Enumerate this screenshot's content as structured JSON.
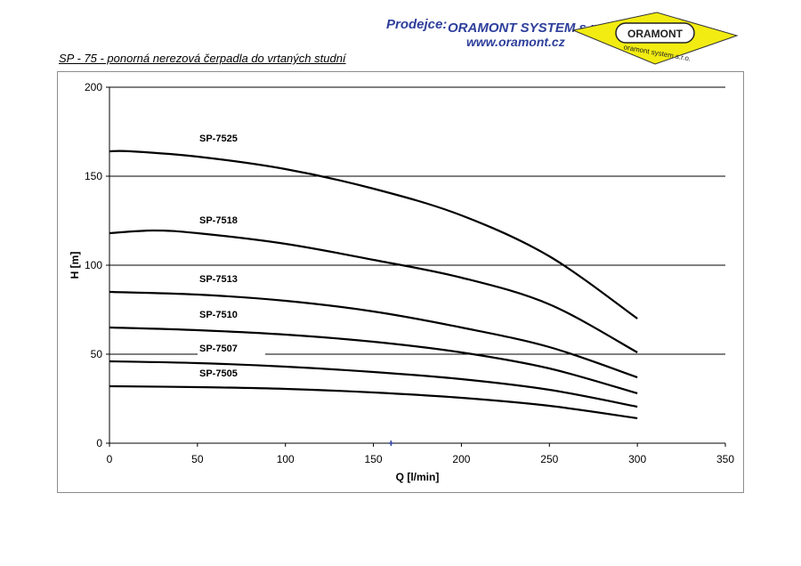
{
  "header": {
    "label": "Prodejce:",
    "company": "ORAMONT SYSTEM s.r.o.",
    "website": "www.oramont.cz",
    "logo_text_top": "ORAMONT",
    "logo_text_bottom": "oramont system s.r.o.",
    "logo_color": "#f2ec12",
    "text_color": "#2e3f9b"
  },
  "subtitle": "SP - 75 - ponorná nerezová čerpadla do vrtaných studní",
  "chart_data": {
    "type": "line",
    "title": "",
    "xlabel": "Q [l/min]",
    "ylabel": "H [m]",
    "xlim": [
      0,
      350
    ],
    "ylim": [
      0,
      200
    ],
    "xticks": [
      0,
      50,
      100,
      150,
      200,
      250,
      300,
      350
    ],
    "yticks": [
      0,
      50,
      100,
      150,
      200
    ],
    "grid": "horizontal",
    "line_color": "#000000",
    "series": [
      {
        "name": "SP-7525",
        "x": [
          0,
          12,
          50,
          100,
          150,
          200,
          250,
          300
        ],
        "y": [
          164,
          164,
          161,
          154,
          143,
          128,
          105,
          70
        ]
      },
      {
        "name": "SP-7518",
        "x": [
          0,
          25,
          50,
          100,
          150,
          200,
          250,
          300
        ],
        "y": [
          118,
          119.5,
          118,
          112,
          103,
          93,
          78,
          51
        ]
      },
      {
        "name": "SP-7513",
        "x": [
          0,
          50,
          100,
          150,
          200,
          250,
          300
        ],
        "y": [
          85,
          83.5,
          80,
          74,
          65,
          54,
          37
        ]
      },
      {
        "name": "SP-7510",
        "x": [
          0,
          50,
          100,
          150,
          200,
          250,
          300
        ],
        "y": [
          65,
          63.5,
          61,
          57,
          51,
          42,
          28
        ]
      },
      {
        "name": "SP-7507",
        "x": [
          0,
          50,
          100,
          150,
          200,
          250,
          300
        ],
        "y": [
          46,
          45,
          43,
          40,
          36,
          30,
          20.5
        ]
      },
      {
        "name": "SP-7505",
        "x": [
          0,
          50,
          100,
          150,
          200,
          250,
          300
        ],
        "y": [
          32,
          31.5,
          30.5,
          28.5,
          25.5,
          21,
          14
        ]
      }
    ],
    "marker_point": {
      "x": 160,
      "y": 0,
      "color": "#2e3f9b"
    }
  }
}
